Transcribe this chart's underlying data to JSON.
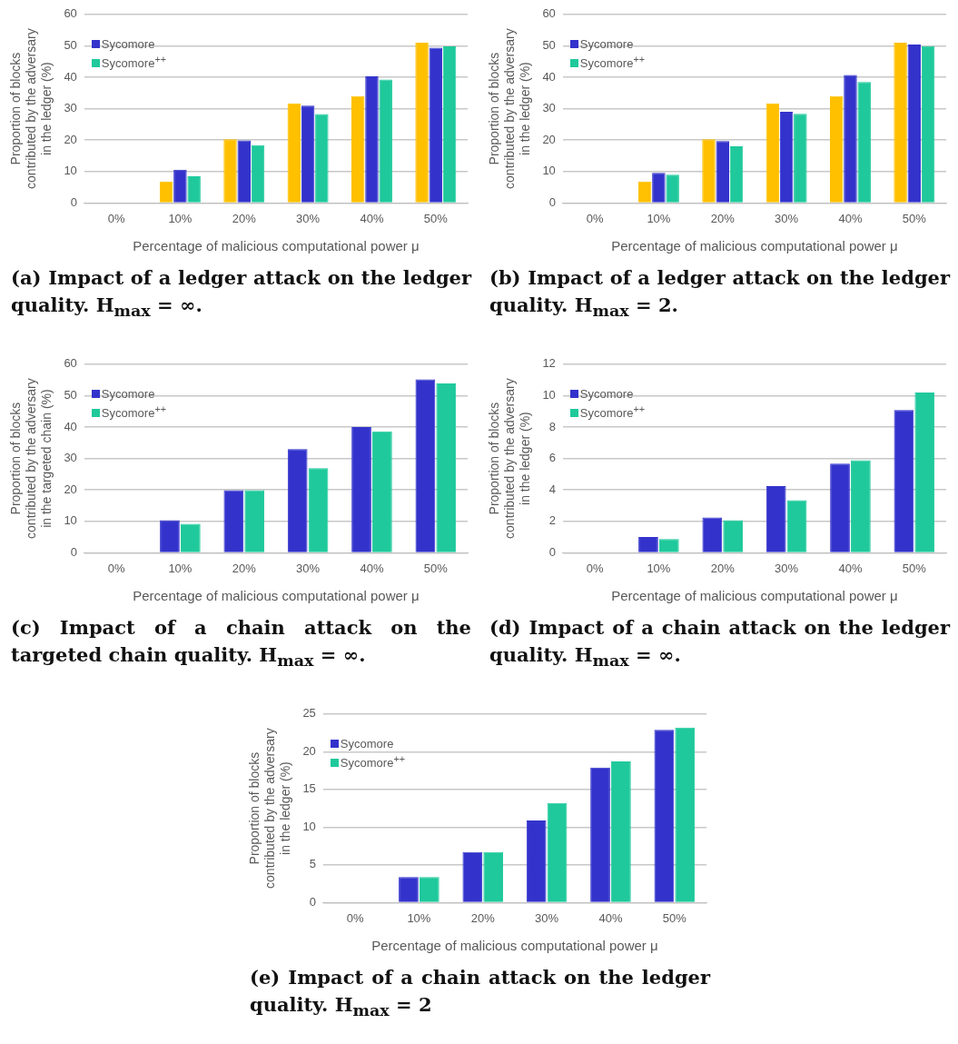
{
  "chart_data": [
    {
      "type": "bar",
      "title": "(a) Impact of a ledger attack on the ledger quality. H$_{max}$ = ∞.",
      "xlabel": "Percentage of malicious computational power μ",
      "ylabel": "Proportion of blocks contributed by the adversary in the ledger (%)",
      "categories": [
        "0%",
        "10%",
        "20%",
        "30%",
        "40%",
        "50%"
      ],
      "series": [
        {
          "color": "#ffc000",
          "values": [
            0,
            6.8,
            20.3,
            31.7,
            34,
            51
          ]
        },
        {
          "name": "Sycomore",
          "color": "#3333cc",
          "values": [
            0,
            10.6,
            19.9,
            31,
            40.3,
            49.4
          ]
        },
        {
          "name": "Sycomore$^{++}$",
          "color": "#1fc99b",
          "values": [
            0,
            8.5,
            18.4,
            28.3,
            39.3,
            49.8
          ]
        }
      ],
      "ylim": [
        0,
        60
      ],
      "yticks": [
        0,
        10,
        20,
        30,
        40,
        50,
        60
      ],
      "grid": "y",
      "legend": "top left"
    },
    {
      "type": "bar",
      "title": "(b) Impact of a ledger attack on the ledger quality. H$_{max}$ = 2.",
      "xlabel": "Percentage of malicious computational power μ",
      "ylabel": "Proportion of blocks contributed by the adversary in the ledger (%)",
      "categories": [
        "0%",
        "10%",
        "20%",
        "30%",
        "40%",
        "50%"
      ],
      "series": [
        {
          "color": "#ffc000",
          "values": [
            0,
            6.8,
            20.3,
            31.7,
            34,
            51
          ]
        },
        {
          "name": "Sycomore",
          "color": "#3333cc",
          "values": [
            0,
            9.6,
            19.7,
            29,
            40.7,
            50.4
          ]
        },
        {
          "name": "Sycomore$^{++}$",
          "color": "#1fc99b",
          "values": [
            0,
            9,
            18,
            28.4,
            38.5,
            49.9
          ]
        }
      ],
      "ylim": [
        0,
        60
      ],
      "yticks": [
        0,
        10,
        20,
        30,
        40,
        50,
        60
      ],
      "grid": "y",
      "legend": "top left"
    },
    {
      "type": "bar",
      "title": "(c) Impact of a chain attack on the targeted chain quality. H$_{max}$ = ∞.",
      "xlabel": "Percentage of malicious computational power μ",
      "ylabel": "Proportion of blocks contributed by the adversary in the targeted chain (%)",
      "categories": [
        "0%",
        "10%",
        "20%",
        "30%",
        "40%",
        "50%"
      ],
      "series": [
        {
          "name": "Sycomore",
          "color": "#3333cc",
          "values": [
            0,
            10.4,
            19.9,
            33,
            40,
            55.2
          ]
        },
        {
          "name": "Sycomore$^{++}$",
          "color": "#1fc99b",
          "values": [
            0,
            9.2,
            19.9,
            26.9,
            38.6,
            53.9
          ]
        }
      ],
      "ylim": [
        0,
        60
      ],
      "yticks": [
        0,
        10,
        20,
        30,
        40,
        50,
        60
      ],
      "grid": "y",
      "legend": "top left"
    },
    {
      "type": "bar",
      "title": "(d) Impact of a chain attack on the ledger quality. H$_{max}$ = ∞.",
      "xlabel": "Percentage of malicious computational power μ",
      "ylabel": "Proportion of blocks contributed by the adversary in the ledger (%)",
      "categories": [
        "0%",
        "10%",
        "20%",
        "30%",
        "40%",
        "50%"
      ],
      "series": [
        {
          "name": "Sycomore",
          "color": "#3333cc",
          "values": [
            0,
            1,
            2.25,
            4.24,
            5.68,
            9.08
          ]
        },
        {
          "name": "Sycomore$^{++}$",
          "color": "#1fc99b",
          "values": [
            0,
            0.88,
            2.08,
            3.34,
            5.89,
            10.2
          ]
        }
      ],
      "ylim": [
        0,
        12
      ],
      "yticks": [
        0,
        2,
        4,
        6,
        8,
        10,
        12
      ],
      "grid": "y",
      "legend": "top left"
    },
    {
      "type": "bar",
      "title": "(e) Impact of a chain attack on the ledger quality. H$_{max}$ = 2",
      "xlabel": "Percentage of malicious computational power μ",
      "ylabel": "Proportion of blocks contributed by the adversary in the ledger (%)",
      "categories": [
        "0%",
        "10%",
        "20%",
        "30%",
        "40%",
        "50%"
      ],
      "series": [
        {
          "name": "Sycomore",
          "color": "#3333cc",
          "values": [
            0,
            3.4,
            6.7,
            10.9,
            17.9,
            22.9
          ]
        },
        {
          "name": "Sycomore$^{++}$",
          "color": "#1fc99b",
          "values": [
            0,
            3.4,
            6.7,
            13.2,
            18.7,
            23.2
          ]
        }
      ],
      "ylim": [
        0,
        25
      ],
      "yticks": [
        0,
        5,
        10,
        15,
        20,
        25
      ],
      "grid": "y",
      "legend": "top left"
    }
  ]
}
